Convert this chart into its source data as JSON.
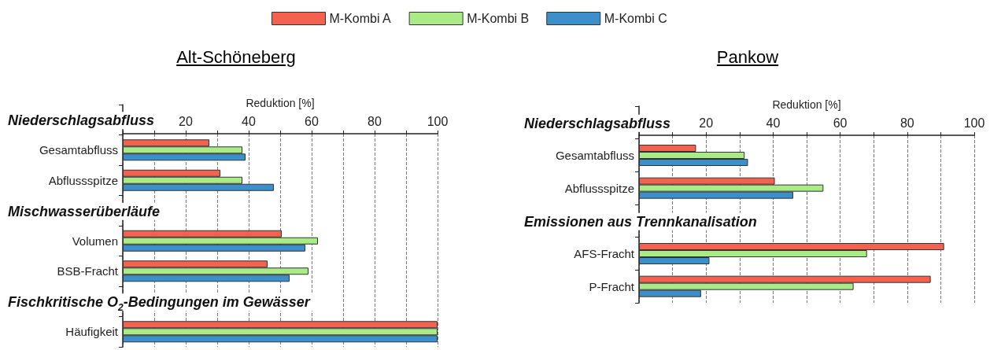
{
  "chart_data": [
    {
      "type": "bar",
      "orientation": "horizontal",
      "title": "Alt-Schöneberg",
      "xlabel": "Reduktion [%]",
      "legend": "top",
      "grid": "x",
      "categories": [
        "Niederschlagsabfluss",
        "Gesamtabfluss",
        "Abflussspitze",
        "Mischwasserüberläufe",
        "Volumen",
        "BSB-Fracht",
        "Fischkritische O$_{2}$-Bedingungen im Gewässer",
        "Häufigkeit"
      ],
      "xlim": [
        0,
        100
      ],
      "xticks": [
        {
          "value": 0,
          "label": null
        },
        {
          "value": 10,
          "label": null
        },
        20,
        {
          "value": 30,
          "label": null
        },
        40,
        {
          "value": 50,
          "label": null
        },
        60,
        {
          "value": 70,
          "label": null
        },
        80,
        {
          "value": 90,
          "label": null
        },
        100
      ],
      "series": [
        {
          "name": "M-Kombi A",
          "color": "#f5614f",
          "values": [
            null,
            27.5,
            31,
            null,
            50.5,
            46,
            null,
            100
          ]
        },
        {
          "name": "M-Kombi B",
          "color": "#a9ec86",
          "values": [
            null,
            38,
            38,
            null,
            62,
            59,
            null,
            100
          ]
        },
        {
          "name": "M-Kombi C",
          "color": "#3b8fcb",
          "values": [
            null,
            39,
            48,
            null,
            58,
            53,
            null,
            100
          ]
        }
      ]
    },
    {
      "type": "bar",
      "orientation": "horizontal",
      "title": "Pankow",
      "xlabel": "Reduktion [%]",
      "grid": "x",
      "categories": [
        "Niederschlagsabfluss",
        "Gesamtabfluss",
        "Abflussspitze",
        "Emissionen aus Trennkanalisation",
        "AFS-Fracht",
        "P-Fracht"
      ],
      "xlim": [
        0,
        100
      ],
      "xticks": [
        {
          "value": 0,
          "label": null
        },
        {
          "value": 10,
          "label": null
        },
        20,
        {
          "value": 30,
          "label": null
        },
        40,
        {
          "value": 50,
          "label": null
        },
        60,
        {
          "value": 70,
          "label": null
        },
        80,
        {
          "value": 90,
          "label": null
        },
        100
      ],
      "series": [
        {
          "name": "M-Kombi A",
          "color": "#f5614f",
          "values": [
            null,
            17,
            40.5,
            null,
            91,
            87
          ]
        },
        {
          "name": "M-Kombi B",
          "color": "#a9ec86",
          "values": [
            null,
            31.5,
            55,
            null,
            68,
            64
          ]
        },
        {
          "name": "M-Kombi C",
          "color": "#3b8fcb",
          "values": [
            null,
            32.5,
            46,
            null,
            21,
            18.5
          ]
        }
      ]
    }
  ]
}
